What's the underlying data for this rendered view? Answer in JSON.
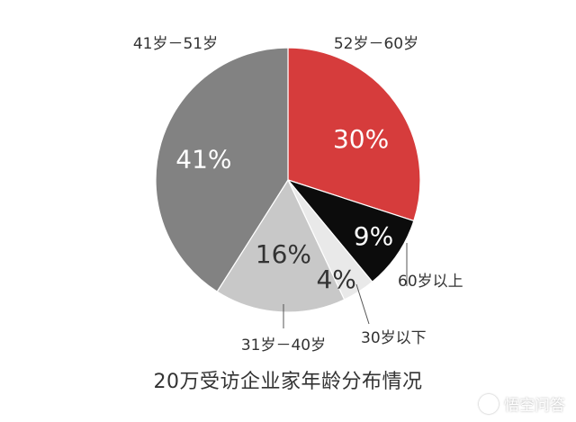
{
  "chart_data": {
    "type": "pie",
    "title": "20万受访企业家年龄分布情况",
    "start_angle_deg": 0,
    "direction": "clockwise",
    "slices": [
      {
        "label": "52岁－60岁",
        "value": 30,
        "value_label": "30%",
        "color": "#d63c3c",
        "value_text_color": "#ffffff",
        "label_side": "outer-top"
      },
      {
        "label": "60岁以上",
        "value": 9,
        "value_label": "9%",
        "color": "#0c0c0c",
        "value_text_color": "#ffffff",
        "label_side": "outer-callout"
      },
      {
        "label": "30岁以下",
        "value": 4,
        "value_label": "4%",
        "color": "#e9e9e9",
        "value_text_color": "#333333",
        "label_side": "outer-callout"
      },
      {
        "label": "31岁－40岁",
        "value": 16,
        "value_label": "16%",
        "color": "#c8c8c8",
        "value_text_color": "#333333",
        "label_side": "outer-bottom"
      },
      {
        "label": "41岁－51岁",
        "value": 41,
        "value_label": "41%",
        "color": "#828282",
        "value_text_color": "#ffffff",
        "label_side": "outer-top"
      }
    ]
  },
  "watermark": {
    "text": "悟空问答",
    "icon": "smile-face-icon"
  }
}
